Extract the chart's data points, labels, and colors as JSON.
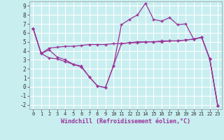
{
  "xlabel": "Windchill (Refroidissement éolien,°C)",
  "background_color": "#c8eef0",
  "grid_color": "#ffffff",
  "line_color": "#993399",
  "marker": "+",
  "xlim": [
    -0.5,
    23.5
  ],
  "ylim": [
    -2.5,
    9.5
  ],
  "xticks": [
    0,
    1,
    2,
    3,
    4,
    5,
    6,
    7,
    8,
    9,
    10,
    11,
    12,
    13,
    14,
    15,
    16,
    17,
    18,
    19,
    20,
    21,
    22,
    23
  ],
  "yticks": [
    -2,
    -1,
    0,
    1,
    2,
    3,
    4,
    5,
    6,
    7,
    8,
    9
  ],
  "series": [
    [
      6.5,
      3.7,
      4.1,
      3.3,
      3.0,
      2.5,
      2.2,
      1.1,
      0.1,
      -0.1,
      2.3,
      6.9,
      7.5,
      8.0,
      9.3,
      7.5,
      7.3,
      7.7,
      6.9,
      7.0,
      5.3,
      5.5,
      3.1,
      -2.1
    ],
    [
      6.5,
      3.7,
      4.3,
      4.4,
      4.5,
      4.5,
      4.6,
      4.7,
      4.7,
      4.7,
      4.8,
      4.8,
      4.9,
      4.9,
      5.0,
      5.0,
      5.0,
      5.1,
      5.1,
      5.2,
      5.3,
      5.5,
      3.1,
      -2.1
    ],
    [
      6.5,
      3.7,
      3.2,
      3.1,
      2.8,
      2.5,
      2.3,
      1.1,
      0.1,
      -0.1,
      2.3,
      4.8,
      4.9,
      5.0,
      5.0,
      5.0,
      5.1,
      5.1,
      5.1,
      5.2,
      5.3,
      5.5,
      3.1,
      -2.1
    ]
  ]
}
